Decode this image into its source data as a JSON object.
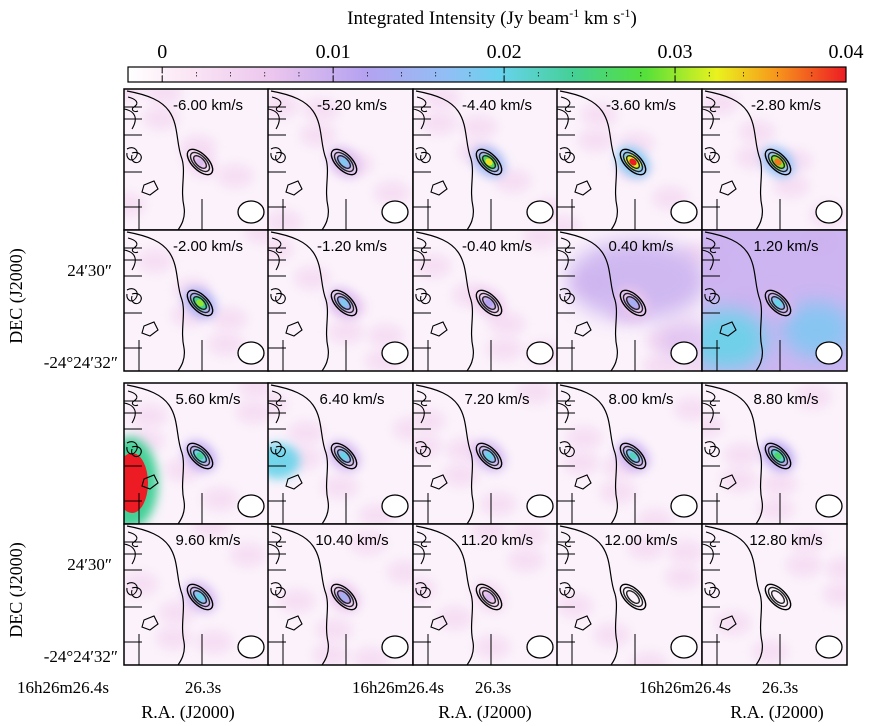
{
  "chart_data": {
    "type": "heatmap",
    "title": "Integrated Intensity (Jy beam",
    "title_sup1": "-1",
    "title_mid": " km s",
    "title_sup2": "-1",
    "title_end": ")",
    "colorbar": {
      "ticks": [
        "0",
        "0.01",
        "0.02",
        "0.03",
        "0.04"
      ],
      "tick_values": [
        0,
        0.01,
        0.02,
        0.03,
        0.04
      ],
      "range": [
        -0.002,
        0.04
      ]
    },
    "ylabel": "DEC (J2000)",
    "xlabel": "R.A. (J2000)",
    "ytick_top": "24′30″",
    "ytick_bottom": "-24°24′32″",
    "xtick_left": "16h26m26.4s",
    "xtick_right": "26.3s",
    "velocity_unit": "km/s",
    "channels": [
      {
        "label": "-6.00 km/s",
        "velocity": -6.0,
        "peak": 0.008
      },
      {
        "label": "-5.20 km/s",
        "velocity": -5.2,
        "peak": 0.018
      },
      {
        "label": "-4.40 km/s",
        "velocity": -4.4,
        "peak": 0.033
      },
      {
        "label": "-3.60 km/s",
        "velocity": -3.6,
        "peak": 0.04
      },
      {
        "label": "-2.80 km/s",
        "velocity": -2.8,
        "peak": 0.037
      },
      {
        "label": "-2.00 km/s",
        "velocity": -2.0,
        "peak": 0.03
      },
      {
        "label": "-1.20 km/s",
        "velocity": -1.2,
        "peak": 0.018
      },
      {
        "label": "-0.40 km/s",
        "velocity": -0.4,
        "peak": 0.012
      },
      {
        "label": "0.40 km/s",
        "velocity": 0.4,
        "peak": 0.014
      },
      {
        "label": "1.20 km/s",
        "velocity": 1.2,
        "peak": 0.02
      },
      {
        "label": "5.60 km/s",
        "velocity": 5.6,
        "peak": 0.024
      },
      {
        "label": "6.40 km/s",
        "velocity": 6.4,
        "peak": 0.02
      },
      {
        "label": "7.20 km/s",
        "velocity": 7.2,
        "peak": 0.02
      },
      {
        "label": "8.00 km/s",
        "velocity": 8.0,
        "peak": 0.022
      },
      {
        "label": "8.80 km/s",
        "velocity": 8.8,
        "peak": 0.026
      },
      {
        "label": "9.60 km/s",
        "velocity": 9.6,
        "peak": 0.02
      },
      {
        "label": "10.40 km/s",
        "velocity": 10.4,
        "peak": 0.014
      },
      {
        "label": "11.20 km/s",
        "velocity": 11.2,
        "peak": 0.008
      },
      {
        "label": "12.00 km/s",
        "velocity": 12.0,
        "peak": 0.005
      },
      {
        "label": "12.80 km/s",
        "velocity": 12.8,
        "peak": 0.004
      }
    ],
    "extended_emission": {
      "0.40 km/s": 0.01,
      "1.20 km/s": 0.02,
      "5.60 km/s": 0.04,
      "6.40 km/s": 0.02
    }
  }
}
